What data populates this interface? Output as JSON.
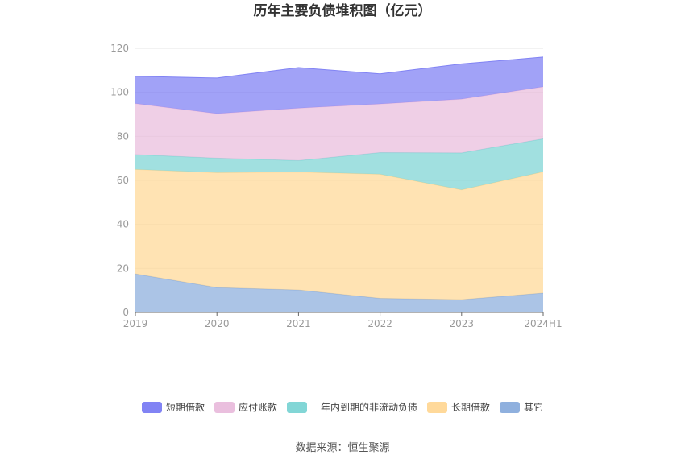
{
  "chart_data": {
    "type": "area",
    "stacked": true,
    "title": "历年主要负债堆积图（亿元）",
    "x": [
      "2019",
      "2020",
      "2021",
      "2022",
      "2023",
      "2024H1"
    ],
    "ylim": [
      0,
      120
    ],
    "yticks": [
      0,
      20,
      40,
      60,
      80,
      100,
      120
    ],
    "grid": true,
    "legend_position": "bottom",
    "series": [
      {
        "name": "其它",
        "color": "#8fb0de",
        "values": [
          17.5,
          11.3,
          10.2,
          6.4,
          5.8,
          8.8
        ]
      },
      {
        "name": "长期借款",
        "color": "#ffd99a",
        "values": [
          47.5,
          52.2,
          53.6,
          56.4,
          49.9,
          55.1
        ]
      },
      {
        "name": "一年内到期的非流动负债",
        "color": "#82d6d6",
        "values": [
          6.7,
          6.6,
          5.2,
          9.8,
          16.8,
          15.0
        ]
      },
      {
        "name": "应付账款",
        "color": "#eabfde",
        "values": [
          23.2,
          20.2,
          23.8,
          22.1,
          24.4,
          23.6
        ]
      },
      {
        "name": "短期借款",
        "color": "#8183f4",
        "values": [
          12.4,
          16.2,
          18.4,
          13.7,
          16.0,
          13.5
        ]
      }
    ],
    "legend_order": [
      "短期借款",
      "应付账款",
      "一年内到期的非流动负债",
      "长期借款",
      "其它"
    ]
  },
  "source_text": "数据来源：恒生聚源"
}
